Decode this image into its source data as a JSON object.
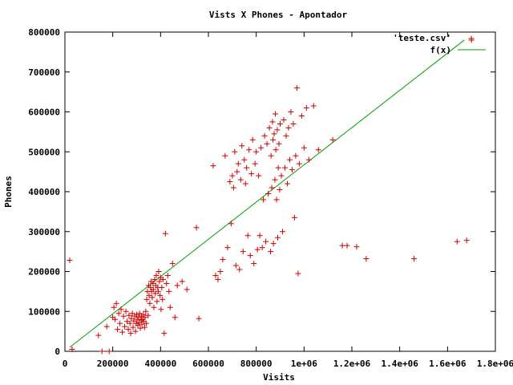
{
  "chart_data": {
    "type": "scatter",
    "title": "Vists X Phones - Apontador",
    "xlabel": "Visits",
    "ylabel": "Phones",
    "xlim": [
      0,
      1800000
    ],
    "ylim": [
      0,
      800000
    ],
    "x_tick_labels": [
      "0",
      "200000",
      "400000",
      "600000",
      "800000",
      "1e+06",
      "1.2e+06",
      "1.4e+06",
      "1.6e+06",
      "1.8e+06"
    ],
    "y_tick_labels": [
      "0",
      "100000",
      "200000",
      "300000",
      "400000",
      "500000",
      "600000",
      "700000",
      "800000"
    ],
    "grid": false,
    "legend_position": "top-right",
    "colors": {
      "points": "#cc0000",
      "fit": "#00a000",
      "axes": "#000000"
    },
    "series": [
      {
        "name": "'teste.csv'",
        "style": "points",
        "points": [
          [
            20000,
            228000
          ],
          [
            30000,
            5000
          ],
          [
            140000,
            40000
          ],
          [
            155000,
            0
          ],
          [
            175000,
            62000
          ],
          [
            185000,
            0
          ],
          [
            200000,
            85000
          ],
          [
            205000,
            110000
          ],
          [
            210000,
            80000
          ],
          [
            215000,
            120000
          ],
          [
            220000,
            55000
          ],
          [
            225000,
            95000
          ],
          [
            230000,
            70000
          ],
          [
            235000,
            105000
          ],
          [
            240000,
            48000
          ],
          [
            245000,
            88000
          ],
          [
            250000,
            62000
          ],
          [
            255000,
            100000
          ],
          [
            260000,
            75000
          ],
          [
            265000,
            55000
          ],
          [
            268000,
            90000
          ],
          [
            272000,
            70000
          ],
          [
            275000,
            45000
          ],
          [
            278000,
            82000
          ],
          [
            282000,
            95000
          ],
          [
            285000,
            60000
          ],
          [
            288000,
            76000
          ],
          [
            292000,
            88000
          ],
          [
            295000,
            50000
          ],
          [
            298000,
            70000
          ],
          [
            300000,
            92000
          ],
          [
            302000,
            80000
          ],
          [
            305000,
            65000
          ],
          [
            308000,
            85000
          ],
          [
            310000,
            72000
          ],
          [
            312000,
            95000
          ],
          [
            315000,
            58000
          ],
          [
            318000,
            78000
          ],
          [
            320000,
            88000
          ],
          [
            322000,
            68000
          ],
          [
            325000,
            80000
          ],
          [
            328000,
            92000
          ],
          [
            330000,
            75000
          ],
          [
            333000,
            60000
          ],
          [
            335000,
            85000
          ],
          [
            338000,
            100000
          ],
          [
            340000,
            70000
          ],
          [
            342000,
            130000
          ],
          [
            345000,
            150000
          ],
          [
            348000,
            90000
          ],
          [
            350000,
            165000
          ],
          [
            352000,
            140000
          ],
          [
            355000,
            120000
          ],
          [
            358000,
            160000
          ],
          [
            360000,
            175000
          ],
          [
            362000,
            150000
          ],
          [
            365000,
            135000
          ],
          [
            368000,
            170000
          ],
          [
            370000,
            155000
          ],
          [
            372000,
            110000
          ],
          [
            375000,
            180000
          ],
          [
            378000,
            145000
          ],
          [
            380000,
            165000
          ],
          [
            382000,
            190000
          ],
          [
            385000,
            125000
          ],
          [
            388000,
            160000
          ],
          [
            390000,
            150000
          ],
          [
            392000,
            200000
          ],
          [
            395000,
            175000
          ],
          [
            398000,
            140000
          ],
          [
            400000,
            185000
          ],
          [
            402000,
            105000
          ],
          [
            405000,
            160000
          ],
          [
            408000,
            130000
          ],
          [
            410000,
            180000
          ],
          [
            415000,
            45000
          ],
          [
            420000,
            295000
          ],
          [
            425000,
            170000
          ],
          [
            430000,
            190000
          ],
          [
            435000,
            150000
          ],
          [
            440000,
            110000
          ],
          [
            450000,
            220000
          ],
          [
            460000,
            85000
          ],
          [
            470000,
            165000
          ],
          [
            490000,
            175000
          ],
          [
            510000,
            155000
          ],
          [
            550000,
            310000
          ],
          [
            560000,
            82000
          ],
          [
            620000,
            465000
          ],
          [
            630000,
            190000
          ],
          [
            640000,
            180000
          ],
          [
            650000,
            200000
          ],
          [
            660000,
            230000
          ],
          [
            670000,
            490000
          ],
          [
            680000,
            260000
          ],
          [
            690000,
            425000
          ],
          [
            695000,
            320000
          ],
          [
            700000,
            440000
          ],
          [
            705000,
            410000
          ],
          [
            710000,
            500000
          ],
          [
            715000,
            215000
          ],
          [
            720000,
            450000
          ],
          [
            725000,
            470000
          ],
          [
            730000,
            205000
          ],
          [
            735000,
            430000
          ],
          [
            740000,
            515000
          ],
          [
            745000,
            250000
          ],
          [
            750000,
            480000
          ],
          [
            755000,
            420000
          ],
          [
            760000,
            460000
          ],
          [
            765000,
            290000
          ],
          [
            770000,
            505000
          ],
          [
            775000,
            240000
          ],
          [
            780000,
            445000
          ],
          [
            785000,
            530000
          ],
          [
            790000,
            220000
          ],
          [
            795000,
            470000
          ],
          [
            800000,
            500000
          ],
          [
            805000,
            255000
          ],
          [
            810000,
            440000
          ],
          [
            815000,
            290000
          ],
          [
            820000,
            510000
          ],
          [
            825000,
            260000
          ],
          [
            830000,
            380000
          ],
          [
            835000,
            540000
          ],
          [
            840000,
            275000
          ],
          [
            845000,
            520000
          ],
          [
            850000,
            395000
          ],
          [
            855000,
            560000
          ],
          [
            860000,
            250000
          ],
          [
            862000,
            490000
          ],
          [
            865000,
            410000
          ],
          [
            868000,
            575000
          ],
          [
            870000,
            530000
          ],
          [
            872000,
            270000
          ],
          [
            875000,
            545000
          ],
          [
            878000,
            430000
          ],
          [
            880000,
            595000
          ],
          [
            882000,
            505000
          ],
          [
            885000,
            380000
          ],
          [
            888000,
            555000
          ],
          [
            890000,
            285000
          ],
          [
            892000,
            460000
          ],
          [
            895000,
            520000
          ],
          [
            898000,
            405000
          ],
          [
            900000,
            570000
          ],
          [
            905000,
            440000
          ],
          [
            910000,
            300000
          ],
          [
            915000,
            580000
          ],
          [
            920000,
            460000
          ],
          [
            925000,
            540000
          ],
          [
            930000,
            420000
          ],
          [
            935000,
            560000
          ],
          [
            940000,
            480000
          ],
          [
            945000,
            600000
          ],
          [
            950000,
            455000
          ],
          [
            955000,
            570000
          ],
          [
            960000,
            335000
          ],
          [
            965000,
            490000
          ],
          [
            970000,
            660000
          ],
          [
            975000,
            195000
          ],
          [
            980000,
            470000
          ],
          [
            990000,
            590000
          ],
          [
            1000000,
            510000
          ],
          [
            1010000,
            610000
          ],
          [
            1020000,
            480000
          ],
          [
            1040000,
            615000
          ],
          [
            1060000,
            505000
          ],
          [
            1120000,
            530000
          ],
          [
            1160000,
            265000
          ],
          [
            1180000,
            265000
          ],
          [
            1220000,
            262000
          ],
          [
            1260000,
            232000
          ],
          [
            1460000,
            232000
          ],
          [
            1640000,
            275000
          ],
          [
            1680000,
            278000
          ],
          [
            1700000,
            780000
          ]
        ]
      },
      {
        "name": "f(x)",
        "style": "line",
        "points": [
          [
            20000,
            10000
          ],
          [
            1670000,
            780000
          ]
        ]
      }
    ]
  }
}
